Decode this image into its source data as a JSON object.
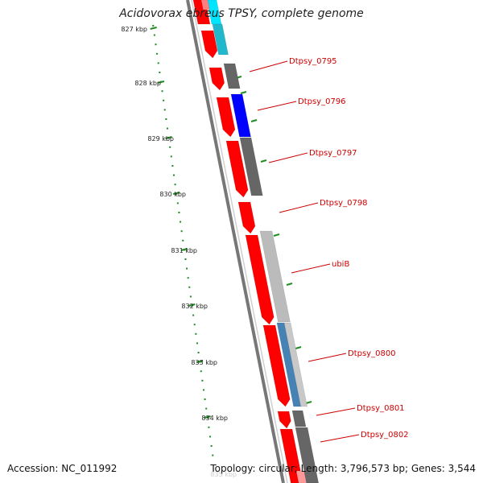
{
  "title": "Acidovorax ebreus TPSY, complete genome",
  "footer": {
    "accession": "Accession: NC_011992",
    "summary": "Topology: circular; Length: 3,796,573 bp; Genes: 3,544"
  },
  "scale_labels": [
    "827 kbp",
    "828 kbp",
    "829 kbp",
    "830 kbp",
    "831 kbp",
    "832 kbp",
    "833 kbp",
    "834 kbp",
    "835 kbp"
  ],
  "gene_labels": [
    "Dtpsy_0795",
    "Dtpsy_0796",
    "Dtpsy_0797",
    "Dtpsy_0798",
    "ubiB",
    "Dtpsy_0800",
    "Dtpsy_0801",
    "Dtpsy_0802"
  ],
  "colors": {
    "forward_feature": "#ff0000",
    "label": "#cc0000",
    "scale_ticks": "#228b22",
    "backbone": "#777777",
    "gray_feature": "#666666",
    "light_gray_feature": "#bbbbbb",
    "blue_feature": "#0000ff",
    "steel_blue_feature": "#4682b4",
    "cyan_feature": "#00e5ff"
  }
}
